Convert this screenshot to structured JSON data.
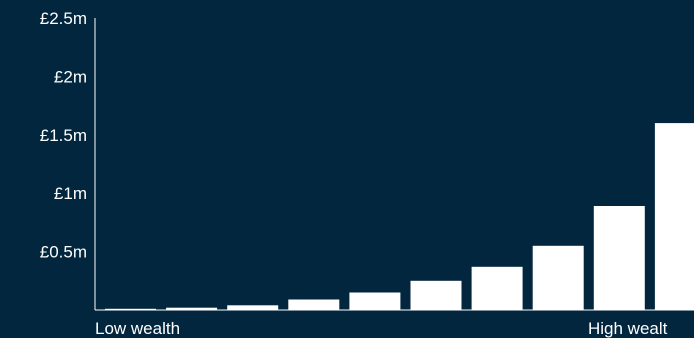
{
  "colors": {
    "background": "#03263f",
    "bar": "#ffffff",
    "axis": "#ffffff",
    "text": "#ffffff"
  },
  "chart_data": {
    "type": "bar",
    "title": "",
    "xlabel": "",
    "ylabel": "",
    "ylim": [
      0,
      2500000
    ],
    "yticks": [
      {
        "value": 500000,
        "label": "£0.5m"
      },
      {
        "value": 1000000,
        "label": "£1m"
      },
      {
        "value": 1500000,
        "label": "£1.5m"
      },
      {
        "value": 2000000,
        "label": "£2m"
      },
      {
        "value": 2500000,
        "label": "£2.5m"
      }
    ],
    "x_axis_labels": {
      "start": "Low wealth",
      "end": "High wealt"
    },
    "grid": false,
    "legend": "none",
    "values": [
      10000,
      20000,
      40000,
      90000,
      150000,
      250000,
      370000,
      550000,
      890000,
      1600000
    ]
  }
}
